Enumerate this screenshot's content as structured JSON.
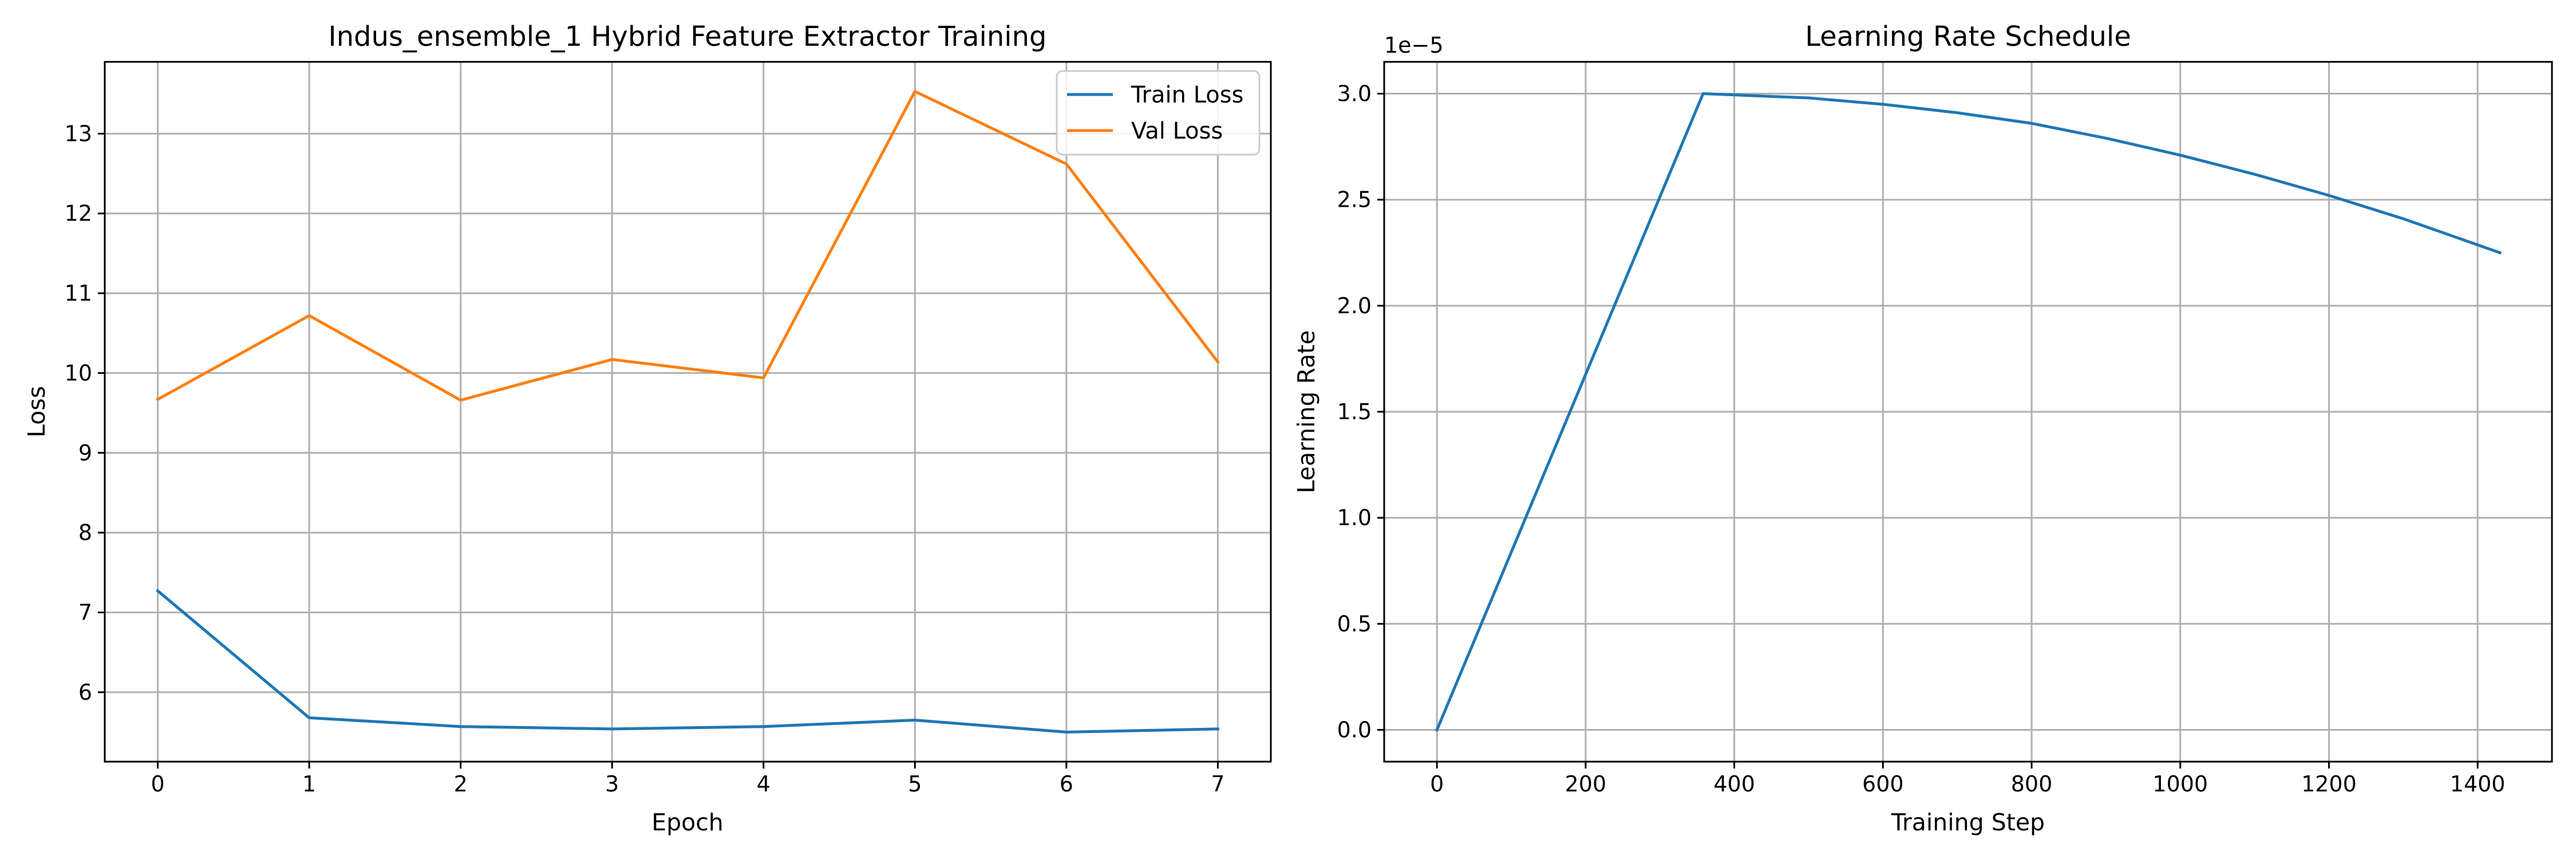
{
  "chart_data": [
    {
      "type": "line",
      "title": "Indus_ensemble_1 Hybrid Feature Extractor Training",
      "xlabel": "Epoch",
      "ylabel": "Loss",
      "x": [
        0,
        1,
        2,
        3,
        4,
        5,
        6,
        7
      ],
      "xlim": [
        -0.35,
        7.35
      ],
      "ylim": [
        5.13,
        13.9
      ],
      "xticks": [
        0,
        1,
        2,
        3,
        4,
        5,
        6,
        7
      ],
      "yticks": [
        6,
        7,
        8,
        9,
        10,
        11,
        12,
        13
      ],
      "grid": true,
      "legend": "top-right",
      "series": [
        {
          "name": "Train Loss",
          "color": "#1f77b4",
          "values": [
            7.27,
            5.68,
            5.57,
            5.54,
            5.57,
            5.65,
            5.5,
            5.54
          ]
        },
        {
          "name": "Val Loss",
          "color": "#ff7f0e",
          "values": [
            9.67,
            10.72,
            9.66,
            10.17,
            9.94,
            13.53,
            12.62,
            10.14
          ]
        }
      ]
    },
    {
      "type": "line",
      "title": "Learning Rate Schedule",
      "xlabel": "Training Step",
      "ylabel": "Learning Rate",
      "offset_label": "1e−5",
      "xlim": [
        -71,
        1500
      ],
      "ylim": [
        -0.15,
        3.15
      ],
      "xticks": [
        0,
        200,
        400,
        600,
        800,
        1000,
        1200,
        1400
      ],
      "yticks": [
        0.0,
        0.5,
        1.0,
        1.5,
        2.0,
        2.5,
        3.0
      ],
      "grid": true,
      "series": [
        {
          "color": "#1f77b4",
          "x": [
            0,
            358,
            500,
            600,
            700,
            800,
            900,
            1000,
            1100,
            1200,
            1300,
            1430
          ],
          "values": [
            0.0,
            3.0,
            2.98,
            2.95,
            2.91,
            2.86,
            2.79,
            2.71,
            2.62,
            2.52,
            2.41,
            2.25
          ]
        }
      ]
    }
  ]
}
